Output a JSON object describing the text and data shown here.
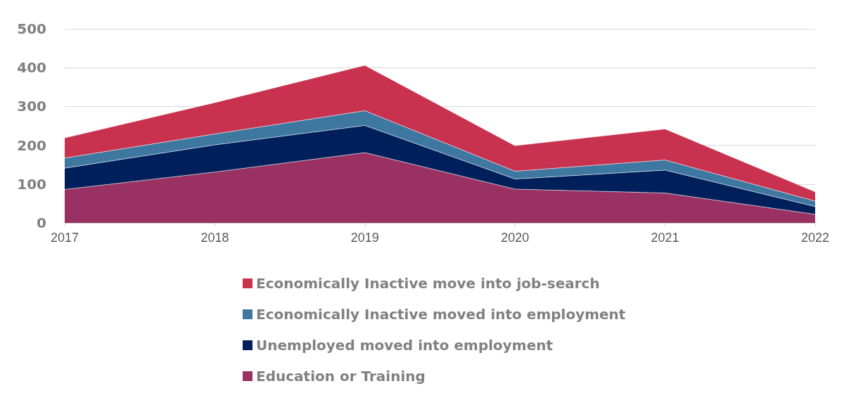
{
  "chart_data": {
    "type": "area",
    "stacked": true,
    "categories": [
      "2017",
      "2018",
      "2019",
      "2020",
      "2021",
      "2022"
    ],
    "series": [
      {
        "name": "Education or Training",
        "color": "#993262",
        "values": [
          86,
          131,
          181,
          87,
          77,
          22
        ]
      },
      {
        "name": "Unemployed moved into employment",
        "color": "#001f5b",
        "values": [
          55,
          70,
          70,
          26,
          59,
          20
        ]
      },
      {
        "name": "Economically Inactive moved into employment",
        "color": "#3e77a0",
        "values": [
          26,
          28,
          38,
          20,
          26,
          14
        ]
      },
      {
        "name": "Economically Inactive move into job-search",
        "color": "#c8324f",
        "values": [
          52,
          81,
          117,
          66,
          80,
          24
        ]
      }
    ],
    "ylim": [
      0,
      500
    ],
    "yticks": [
      0,
      100,
      200,
      300,
      400,
      500
    ],
    "grid": "y",
    "legend": "bottom"
  }
}
